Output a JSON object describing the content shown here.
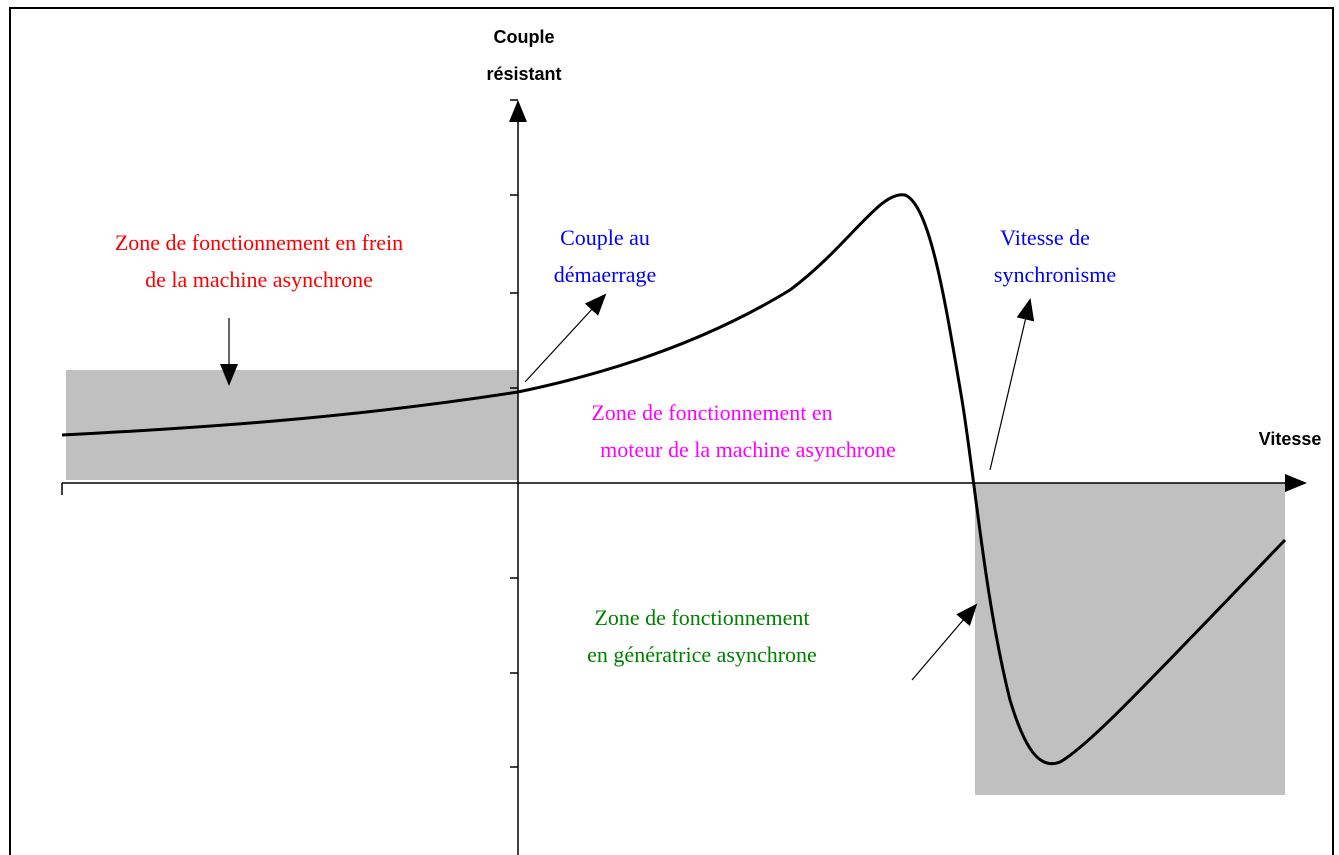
{
  "y_axis": {
    "label_lines": [
      "Couple",
      "résistant"
    ]
  },
  "x_axis": {
    "label": "Vitesse"
  },
  "annotations": {
    "brake_zone": [
      "Zone de fonctionnement en frein",
      "de la machine asynchrone"
    ],
    "starting_torque": [
      "Couple au",
      "démaerrage"
    ],
    "synchronous_speed": [
      "Vitesse de",
      "synchronisme"
    ],
    "motor_zone": [
      "Zone de fonctionnement en",
      "moteur de la machine asynchrone"
    ],
    "generator_zone": [
      "Zone de fonctionnement",
      "en génératrice asynchrone"
    ]
  }
}
